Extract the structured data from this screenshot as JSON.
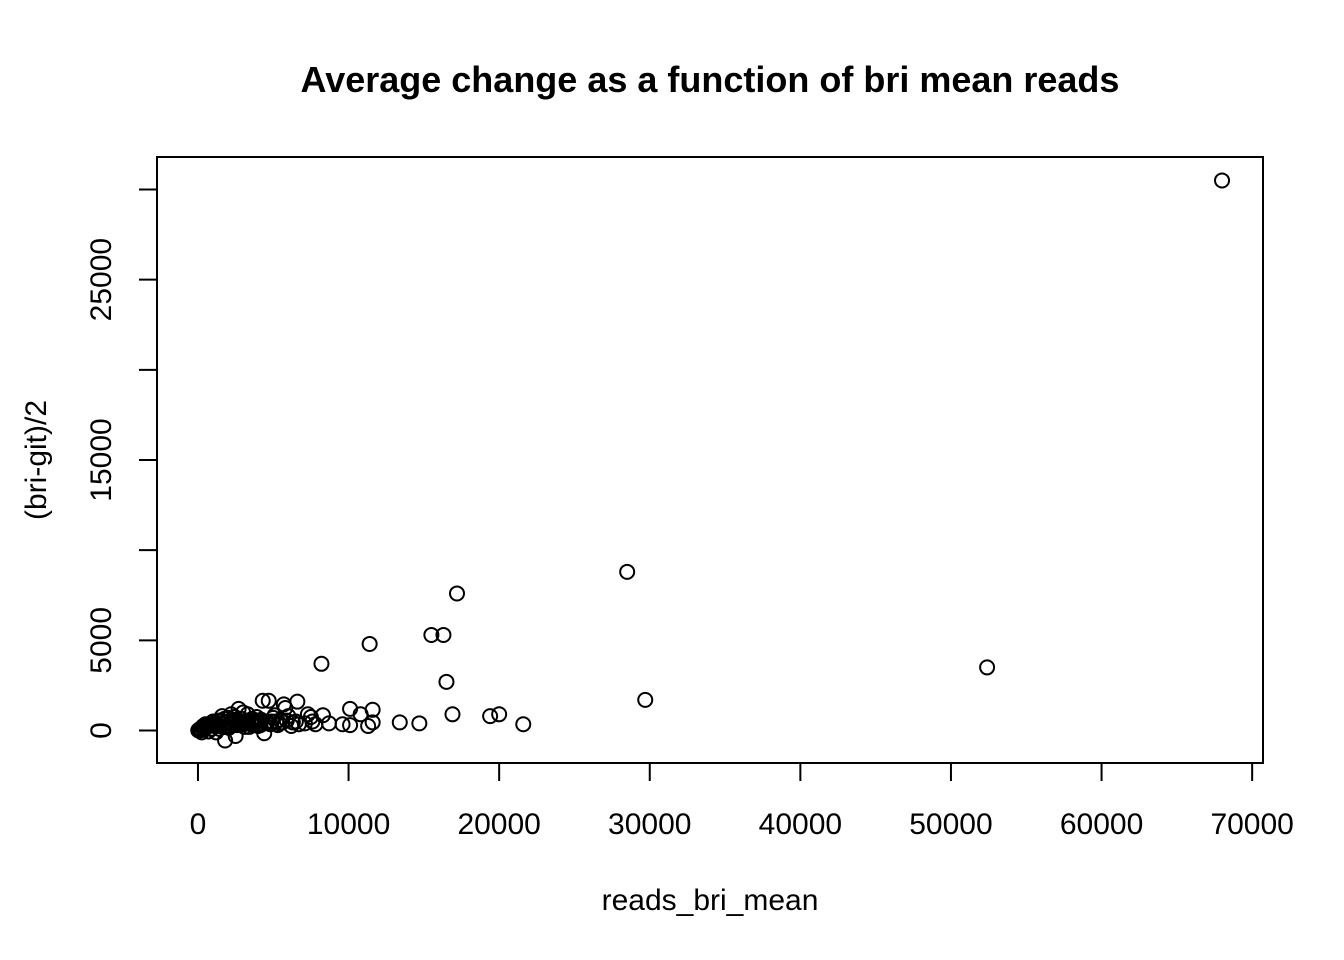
{
  "chart_data": {
    "type": "scatter",
    "title": "Average change as a function of bri mean reads",
    "xlabel": "reads_bri_mean",
    "ylabel": "(bri-git)/2",
    "xlim": [
      -2720,
      70720
    ],
    "ylim": [
      -1800,
      31800
    ],
    "x_ticks": [
      0,
      10000,
      20000,
      30000,
      40000,
      50000,
      60000,
      70000
    ],
    "x_tick_labels": [
      "0",
      "10000",
      "20000",
      "30000",
      "40000",
      "50000",
      "60000",
      "70000"
    ],
    "y_ticks": [
      0,
      5000,
      10000,
      15000,
      20000,
      25000,
      30000
    ],
    "y_tick_labels": [
      "0",
      "5000",
      "",
      "15000",
      "",
      "25000",
      ""
    ],
    "marker": "open-circle",
    "grid": false,
    "series": [
      {
        "points": [
          [
            68000,
            30500
          ],
          [
            52400,
            3500
          ],
          [
            29700,
            1700
          ],
          [
            28500,
            8800
          ],
          [
            17200,
            7600
          ],
          [
            16300,
            5300
          ],
          [
            15500,
            5300
          ],
          [
            16500,
            2700
          ],
          [
            11400,
            4800
          ],
          [
            8200,
            3700
          ],
          [
            21600,
            350
          ],
          [
            20000,
            900
          ],
          [
            19400,
            800
          ],
          [
            16900,
            900
          ],
          [
            14700,
            400
          ],
          [
            13400,
            450
          ],
          [
            11600,
            1150
          ],
          [
            11600,
            450
          ],
          [
            11300,
            250
          ],
          [
            10800,
            900
          ],
          [
            10100,
            1200
          ],
          [
            10100,
            300
          ],
          [
            9600,
            350
          ],
          [
            8700,
            400
          ],
          [
            8300,
            850
          ],
          [
            7800,
            350
          ],
          [
            7600,
            500
          ],
          [
            7500,
            750
          ],
          [
            7300,
            900
          ],
          [
            7100,
            400
          ],
          [
            6600,
            1600
          ],
          [
            6500,
            500
          ],
          [
            6200,
            250
          ],
          [
            6000,
            800
          ],
          [
            5800,
            1250
          ],
          [
            5700,
            1450
          ],
          [
            5500,
            600
          ],
          [
            5300,
            300
          ],
          [
            5100,
            850
          ],
          [
            4900,
            500
          ],
          [
            4700,
            1650
          ],
          [
            4600,
            450
          ],
          [
            4300,
            1650
          ],
          [
            4400,
            -150
          ],
          [
            4100,
            400
          ],
          [
            3900,
            750
          ],
          [
            3700,
            300
          ],
          [
            3500,
            500
          ],
          [
            3300,
            900
          ],
          [
            3100,
            200
          ],
          [
            3000,
            1000
          ],
          [
            2900,
            650
          ],
          [
            2700,
            1200
          ],
          [
            2600,
            300
          ],
          [
            2500,
            -300
          ],
          [
            2400,
            600
          ],
          [
            2200,
            900
          ],
          [
            2100,
            250
          ],
          [
            2000,
            700
          ],
          [
            1900,
            400
          ],
          [
            1800,
            -550
          ],
          [
            1700,
            200
          ],
          [
            1600,
            800
          ],
          [
            1500,
            500
          ],
          [
            1400,
            100
          ],
          [
            1300,
            350
          ],
          [
            1200,
            -100
          ],
          [
            1100,
            250
          ],
          [
            1000,
            500
          ],
          [
            900,
            100
          ],
          [
            800,
            300
          ],
          [
            700,
            -50
          ],
          [
            600,
            200
          ],
          [
            500,
            350
          ],
          [
            400,
            50
          ],
          [
            300,
            150
          ],
          [
            250,
            -100
          ],
          [
            200,
            50
          ],
          [
            150,
            100
          ],
          [
            100,
            0
          ],
          [
            50,
            30
          ],
          [
            20,
            10
          ],
          [
            2300,
            300
          ],
          [
            2800,
            450
          ],
          [
            3200,
            550
          ],
          [
            3600,
            650
          ],
          [
            4000,
            250
          ],
          [
            4800,
            350
          ],
          [
            5000,
            700
          ],
          [
            5400,
            400
          ],
          [
            6300,
            450
          ],
          [
            1350,
            550
          ],
          [
            1750,
            650
          ],
          [
            2050,
            150
          ],
          [
            2450,
            750
          ],
          [
            2650,
            550
          ],
          [
            3050,
            350
          ],
          [
            3400,
            200
          ],
          [
            3800,
            550
          ],
          [
            4200,
            600
          ],
          [
            950,
            350
          ],
          [
            1150,
            450
          ],
          [
            650,
            300
          ],
          [
            450,
            200
          ],
          [
            350,
            250
          ],
          [
            1450,
            250
          ],
          [
            1650,
            350
          ],
          [
            1950,
            500
          ],
          [
            2150,
            400
          ],
          [
            2350,
            500
          ],
          [
            2550,
            450
          ],
          [
            2750,
            350
          ],
          [
            2950,
            500
          ],
          [
            3150,
            450
          ],
          [
            3350,
            400
          ],
          [
            3550,
            350
          ],
          [
            3750,
            450
          ],
          [
            3950,
            550
          ],
          [
            4150,
            300
          ],
          [
            4500,
            450
          ],
          [
            5200,
            500
          ],
          [
            5600,
            450
          ],
          [
            5900,
            550
          ],
          [
            6700,
            350
          ]
        ]
      }
    ]
  }
}
